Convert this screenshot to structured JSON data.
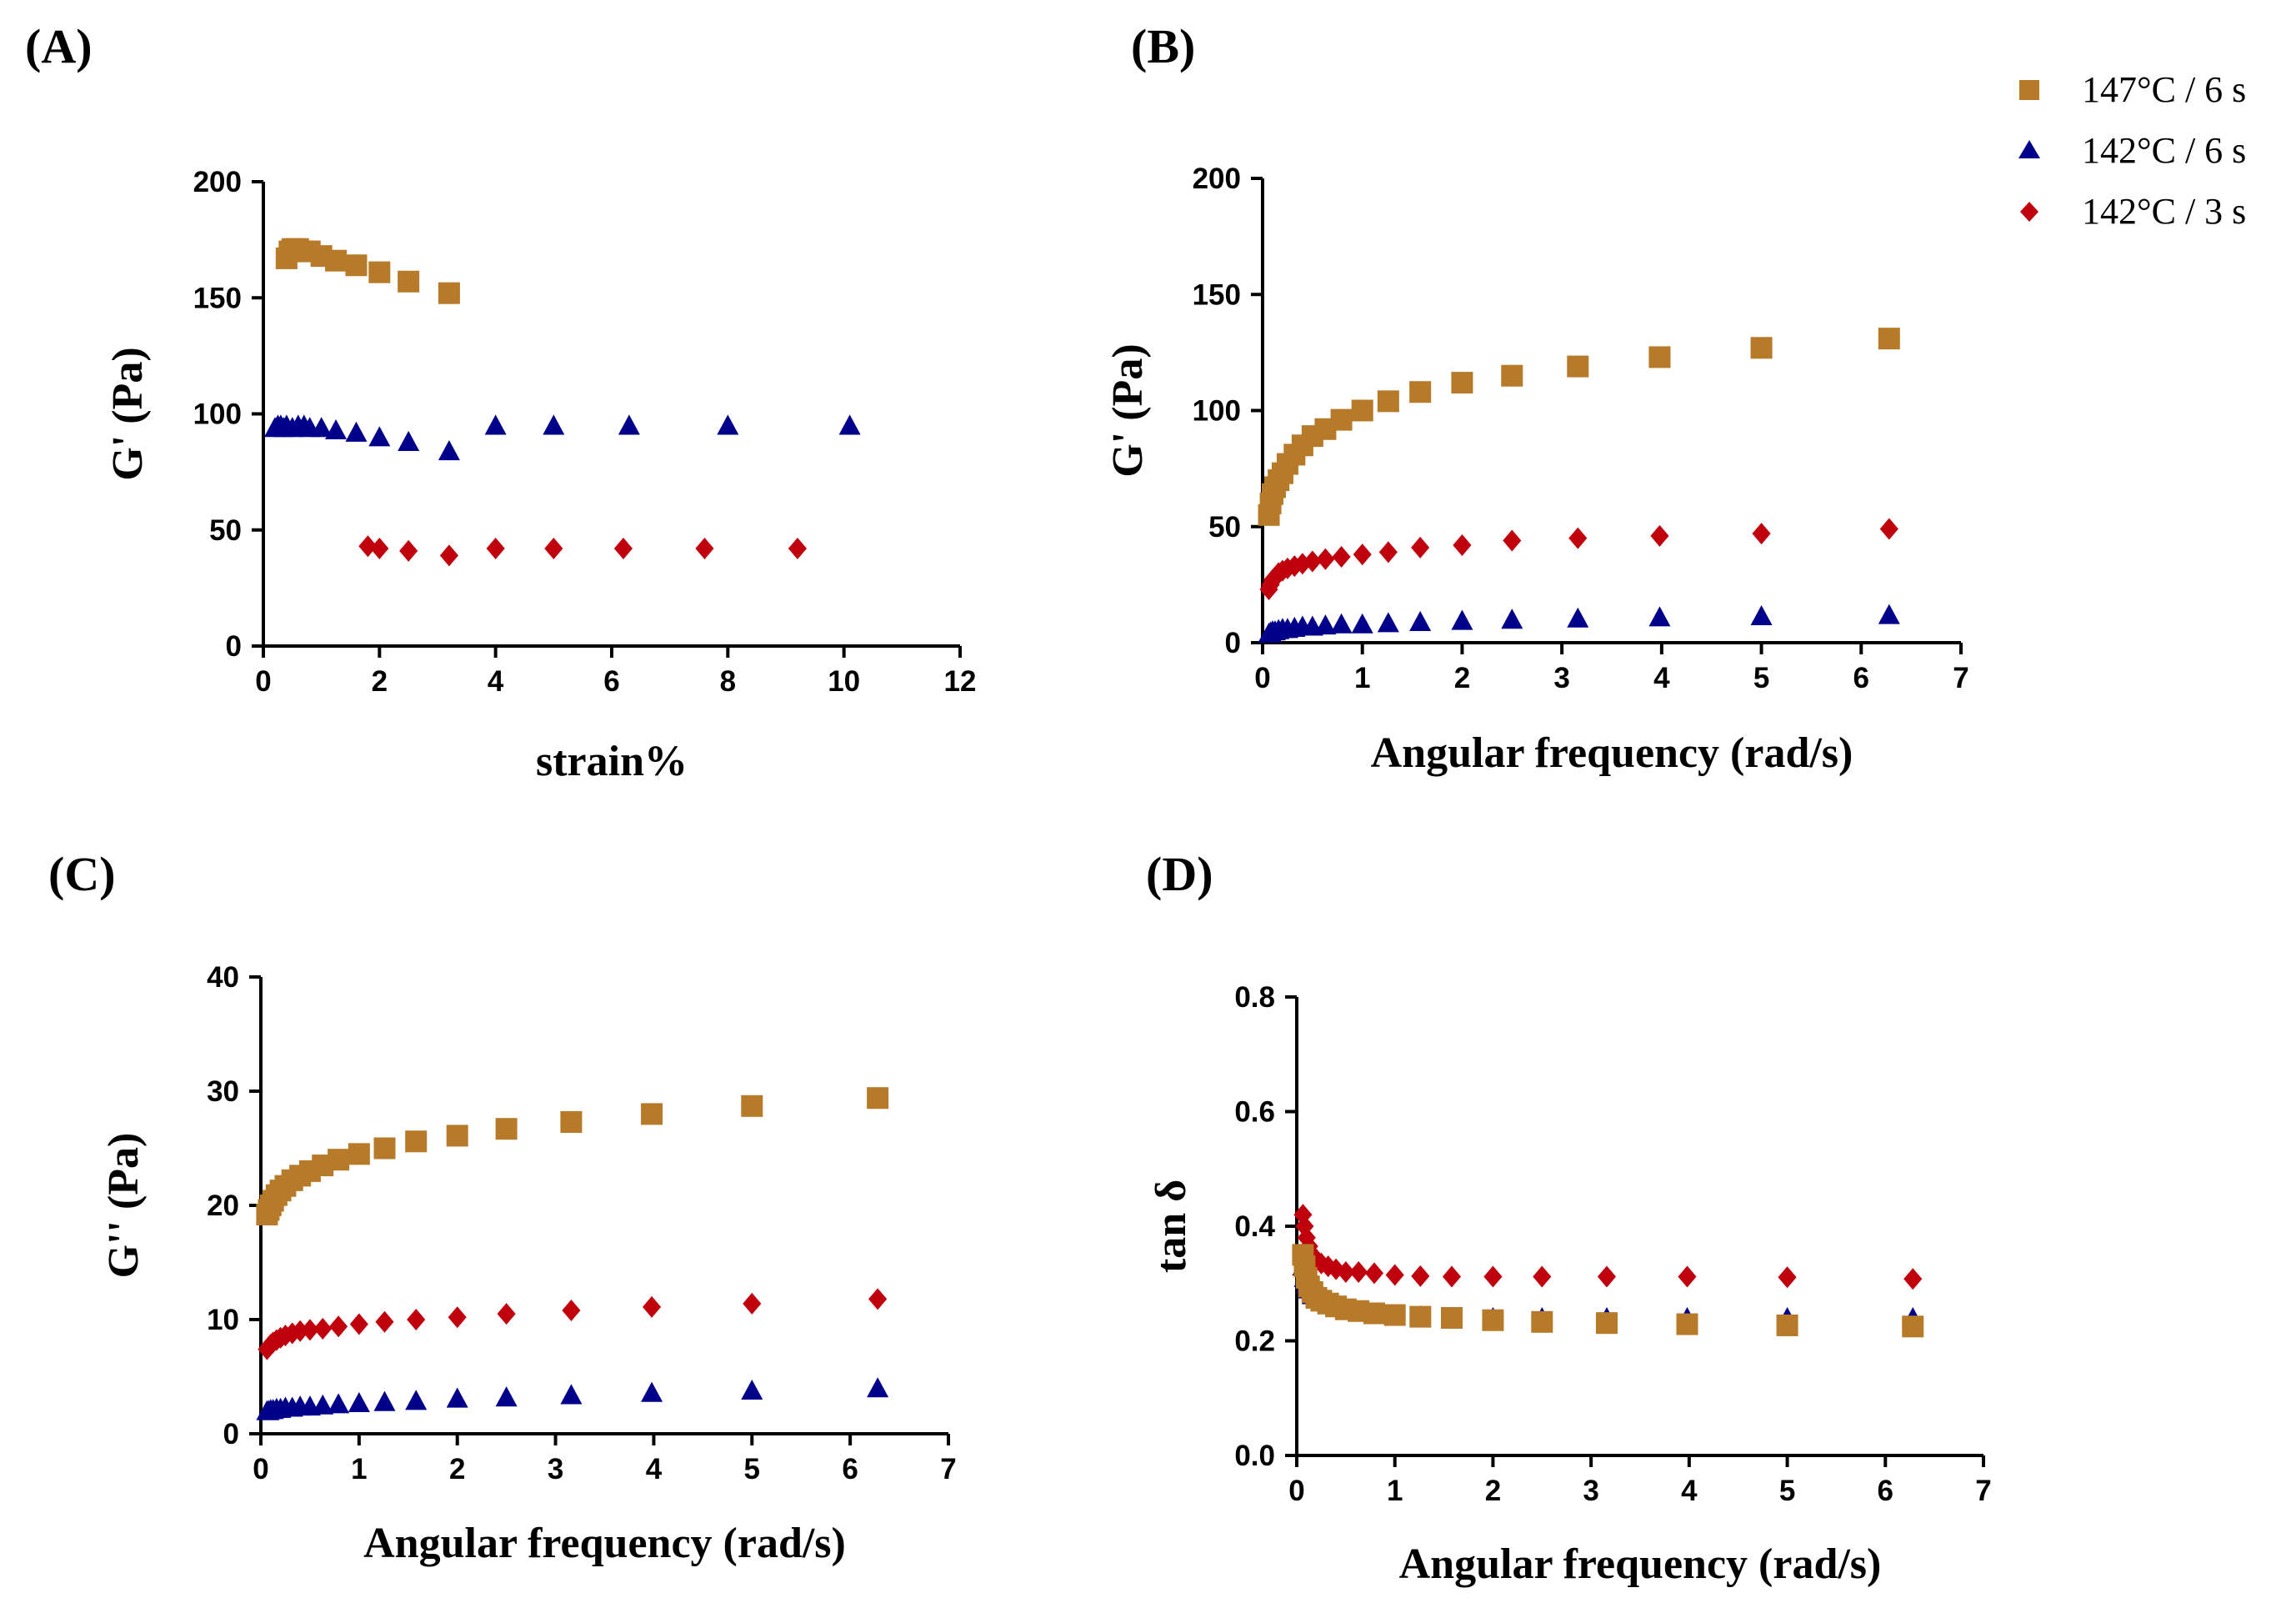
{
  "figure": {
    "legend": [
      {
        "label": "147°C / 6 s",
        "color": "#B77A29",
        "marker": "square"
      },
      {
        "label": "142°C / 6 s",
        "color": "#00008B",
        "marker": "triangle"
      },
      {
        "label": "142°C / 3 s",
        "color": "#C0000C",
        "marker": "diamond"
      }
    ]
  },
  "chart_data": [
    {
      "panel": "(A)",
      "type": "scatter",
      "title": "",
      "xlabel": "strain%",
      "ylabel": "G' (Pa)",
      "xlim": [
        0,
        12
      ],
      "ylim": [
        0,
        200
      ],
      "xticks": [
        0,
        2,
        4,
        6,
        8,
        10,
        12
      ],
      "yticks": [
        0,
        50,
        100,
        150,
        200
      ],
      "series": [
        {
          "name": "147°C / 6 s",
          "x": [
            0.4,
            0.45,
            0.5,
            0.55,
            0.6,
            0.7,
            0.8,
            1.0,
            1.25,
            1.6,
            2.0,
            2.5,
            3.2
          ],
          "y": [
            167,
            170,
            171,
            171,
            171,
            170,
            170,
            168,
            166,
            164,
            161,
            157,
            152
          ]
        },
        {
          "name": "142°C / 6 s",
          "x": [
            0.2,
            0.25,
            0.3,
            0.35,
            0.4,
            0.5,
            0.6,
            0.7,
            0.8,
            1.0,
            1.25,
            1.6,
            2.0,
            2.5,
            3.2,
            4.0,
            5.0,
            6.3,
            8.0,
            10.1
          ],
          "y": [
            94,
            95,
            95,
            94,
            95,
            94,
            95,
            95,
            94,
            94,
            93,
            92,
            90,
            88,
            84,
            95,
            95,
            95,
            95,
            95
          ]
        },
        {
          "name": "142°C / 3 s",
          "x": [
            1.8,
            2.0,
            2.5,
            3.2,
            4.0,
            5.0,
            6.2,
            7.6,
            9.2
          ],
          "y": [
            43,
            42,
            41,
            39,
            42,
            42,
            42,
            42,
            42
          ]
        }
      ]
    },
    {
      "panel": "(B)",
      "type": "scatter",
      "title": "",
      "xlabel": "Angular frequency (rad/s)",
      "ylabel": "G' (Pa)",
      "xlim": [
        0,
        7
      ],
      "ylim": [
        0,
        200
      ],
      "xticks": [
        0,
        1,
        2,
        3,
        4,
        5,
        6,
        7
      ],
      "yticks": [
        0,
        50,
        100,
        150,
        200
      ],
      "series": [
        {
          "name": "147°C / 6 s",
          "x": [
            0.063,
            0.08,
            0.1,
            0.125,
            0.16,
            0.2,
            0.25,
            0.32,
            0.4,
            0.5,
            0.63,
            0.79,
            1.0,
            1.26,
            1.58,
            2.0,
            2.5,
            3.16,
            3.98,
            5.0,
            6.28
          ],
          "y": [
            55,
            60,
            64,
            67,
            70,
            73,
            77,
            81,
            85,
            89,
            92,
            96,
            100,
            104,
            108,
            112,
            115,
            119,
            123,
            127,
            131
          ]
        },
        {
          "name": "142°C / 6 s",
          "x": [
            0.063,
            0.08,
            0.1,
            0.125,
            0.16,
            0.2,
            0.25,
            0.32,
            0.4,
            0.5,
            0.63,
            0.79,
            1.0,
            1.26,
            1.58,
            2.0,
            2.5,
            3.16,
            3.98,
            5.0,
            6.28
          ],
          "y": [
            4,
            4.5,
            5,
            5,
            5.5,
            6,
            6,
            6.5,
            7,
            7,
            7.5,
            8,
            8,
            8.5,
            9,
            9.5,
            10,
            10.5,
            11,
            11.5,
            12
          ]
        },
        {
          "name": "142°C / 3 s",
          "x": [
            0.063,
            0.08,
            0.1,
            0.125,
            0.16,
            0.2,
            0.25,
            0.32,
            0.4,
            0.5,
            0.63,
            0.79,
            1.0,
            1.26,
            1.58,
            2.0,
            2.5,
            3.16,
            3.98,
            5.0,
            6.28
          ],
          "y": [
            23,
            25,
            27,
            28,
            30,
            31,
            32,
            33,
            34,
            35,
            36,
            37,
            38,
            39,
            41,
            42,
            44,
            45,
            46,
            47,
            49
          ]
        }
      ]
    },
    {
      "panel": "(C)",
      "type": "scatter",
      "title": "",
      "xlabel": "Angular frequency (rad/s)",
      "ylabel": "G'' (Pa)",
      "xlim": [
        0,
        7
      ],
      "ylim": [
        0,
        40
      ],
      "xticks": [
        0,
        1,
        2,
        3,
        4,
        5,
        6,
        7
      ],
      "yticks": [
        0,
        10,
        20,
        30,
        40
      ],
      "series": [
        {
          "name": "147°C / 6 s",
          "x": [
            0.063,
            0.08,
            0.1,
            0.125,
            0.16,
            0.2,
            0.25,
            0.32,
            0.4,
            0.5,
            0.63,
            0.79,
            1.0,
            1.26,
            1.58,
            2.0,
            2.5,
            3.16,
            3.98,
            5.0,
            6.28
          ],
          "y": [
            19.2,
            19.6,
            20.0,
            20.4,
            20.9,
            21.3,
            21.7,
            22.2,
            22.6,
            23.0,
            23.5,
            24.0,
            24.5,
            25.0,
            25.6,
            26.1,
            26.7,
            27.3,
            28.0,
            28.7,
            29.4
          ]
        },
        {
          "name": "142°C / 6 s",
          "x": [
            0.063,
            0.08,
            0.1,
            0.125,
            0.16,
            0.2,
            0.25,
            0.32,
            0.4,
            0.5,
            0.63,
            0.79,
            1.0,
            1.26,
            1.58,
            2.0,
            2.5,
            3.16,
            3.98,
            5.0,
            6.28
          ],
          "y": [
            2.0,
            2.0,
            2.1,
            2.1,
            2.2,
            2.2,
            2.3,
            2.3,
            2.4,
            2.4,
            2.5,
            2.6,
            2.7,
            2.8,
            2.9,
            3.1,
            3.2,
            3.4,
            3.6,
            3.8,
            4.0
          ]
        },
        {
          "name": "142°C / 3 s",
          "x": [
            0.063,
            0.08,
            0.1,
            0.125,
            0.16,
            0.2,
            0.25,
            0.32,
            0.4,
            0.5,
            0.63,
            0.79,
            1.0,
            1.26,
            1.58,
            2.0,
            2.5,
            3.16,
            3.98,
            5.0,
            6.28
          ],
          "y": [
            7.4,
            7.6,
            7.8,
            8.0,
            8.2,
            8.4,
            8.6,
            8.8,
            9.0,
            9.1,
            9.2,
            9.4,
            9.6,
            9.8,
            10.0,
            10.2,
            10.5,
            10.8,
            11.1,
            11.4,
            11.8
          ]
        }
      ]
    },
    {
      "panel": "(D)",
      "type": "scatter",
      "title": "",
      "xlabel": "Angular frequency (rad/s)",
      "ylabel": "tan δ",
      "xlim": [
        0,
        7
      ],
      "ylim": [
        0,
        0.8
      ],
      "xticks": [
        0,
        1,
        2,
        3,
        4,
        5,
        6,
        7
      ],
      "yticks": [
        0.0,
        0.2,
        0.4,
        0.6,
        0.8
      ],
      "series": [
        {
          "name": "142°C / 6 s",
          "x": [
            0.063,
            0.08,
            0.1,
            0.125,
            0.16,
            0.2,
            0.25,
            0.32,
            0.4,
            0.5,
            0.63,
            0.79,
            1.0,
            1.26,
            1.58,
            2.0,
            2.5,
            3.16,
            3.98,
            5.0,
            6.28
          ],
          "y": [
            0.33,
            0.31,
            0.3,
            0.29,
            0.28,
            0.275,
            0.27,
            0.265,
            0.26,
            0.255,
            0.25,
            0.248,
            0.245,
            0.243,
            0.24,
            0.24,
            0.24,
            0.24,
            0.24,
            0.24,
            0.24
          ]
        },
        {
          "name": "142°C / 3 s",
          "x": [
            0.063,
            0.08,
            0.1,
            0.125,
            0.16,
            0.2,
            0.25,
            0.32,
            0.4,
            0.5,
            0.63,
            0.79,
            1.0,
            1.26,
            1.58,
            2.0,
            2.5,
            3.16,
            3.98,
            5.0,
            6.28
          ],
          "y": [
            0.42,
            0.4,
            0.38,
            0.365,
            0.35,
            0.34,
            0.335,
            0.33,
            0.325,
            0.32,
            0.32,
            0.318,
            0.315,
            0.313,
            0.312,
            0.312,
            0.312,
            0.312,
            0.312,
            0.311,
            0.308
          ]
        },
        {
          "name": "147°C / 6 s",
          "x": [
            0.063,
            0.08,
            0.1,
            0.125,
            0.16,
            0.2,
            0.25,
            0.32,
            0.4,
            0.5,
            0.63,
            0.79,
            1.0,
            1.26,
            1.58,
            2.0,
            2.5,
            3.16,
            3.98,
            5.0,
            6.28
          ],
          "y": [
            0.35,
            0.33,
            0.31,
            0.295,
            0.285,
            0.275,
            0.27,
            0.265,
            0.26,
            0.255,
            0.252,
            0.248,
            0.245,
            0.242,
            0.24,
            0.236,
            0.233,
            0.231,
            0.229,
            0.227,
            0.225
          ]
        }
      ]
    }
  ]
}
